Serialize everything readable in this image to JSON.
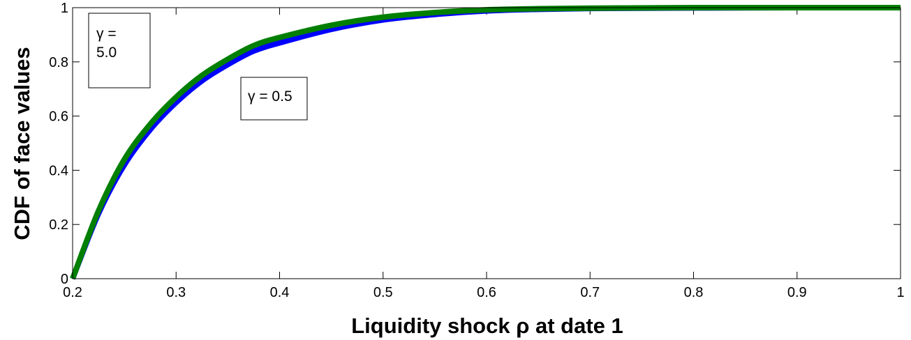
{
  "chart_data": {
    "type": "line",
    "xlabel": "Liquidity shock ρ at date 1",
    "ylabel": "CDF of face values",
    "xlim": [
      0.2,
      1.0
    ],
    "ylim": [
      0,
      1
    ],
    "xticks": [
      0.2,
      0.3,
      0.4,
      0.5,
      0.6,
      0.7,
      0.8,
      0.9,
      1.0
    ],
    "xtick_labels": [
      "0.2",
      "0.3",
      "0.4",
      "0.5",
      "0.6",
      "0.7",
      "0.8",
      "0.9",
      "1"
    ],
    "yticks": [
      0,
      0.2,
      0.4,
      0.6,
      0.8,
      1.0
    ],
    "ytick_labels": [
      "0",
      "0.2",
      "0.4",
      "0.6",
      "0.8",
      "1"
    ],
    "grid": false,
    "series": [
      {
        "name": "γ = 0.5",
        "color": "#0000ff",
        "x": [
          0.2,
          0.225,
          0.25,
          0.275,
          0.3,
          0.325,
          0.35,
          0.375,
          0.4,
          0.45,
          0.5,
          0.55,
          0.6,
          0.65,
          0.7,
          0.75,
          0.8,
          0.9,
          1.0
        ],
        "y": [
          0.0,
          0.24,
          0.42,
          0.55,
          0.65,
          0.73,
          0.79,
          0.84,
          0.87,
          0.92,
          0.955,
          0.975,
          0.988,
          0.994,
          0.997,
          0.998,
          0.999,
          1.0,
          1.0
        ]
      },
      {
        "name": "γ = 5.0",
        "color": "#007f00",
        "x": [
          0.2,
          0.225,
          0.25,
          0.275,
          0.3,
          0.325,
          0.35,
          0.375,
          0.4,
          0.45,
          0.5,
          0.55,
          0.6,
          0.65,
          0.7,
          0.75,
          0.8,
          0.9,
          1.0
        ],
        "y": [
          0.0,
          0.25,
          0.44,
          0.57,
          0.67,
          0.75,
          0.81,
          0.86,
          0.89,
          0.935,
          0.965,
          0.982,
          0.992,
          0.996,
          0.998,
          0.999,
          1.0,
          1.0,
          1.0
        ]
      }
    ],
    "annotations": [
      {
        "lines": [
          "γ =",
          "5.0"
        ]
      },
      {
        "lines": [
          "γ = 0.5"
        ]
      }
    ]
  }
}
